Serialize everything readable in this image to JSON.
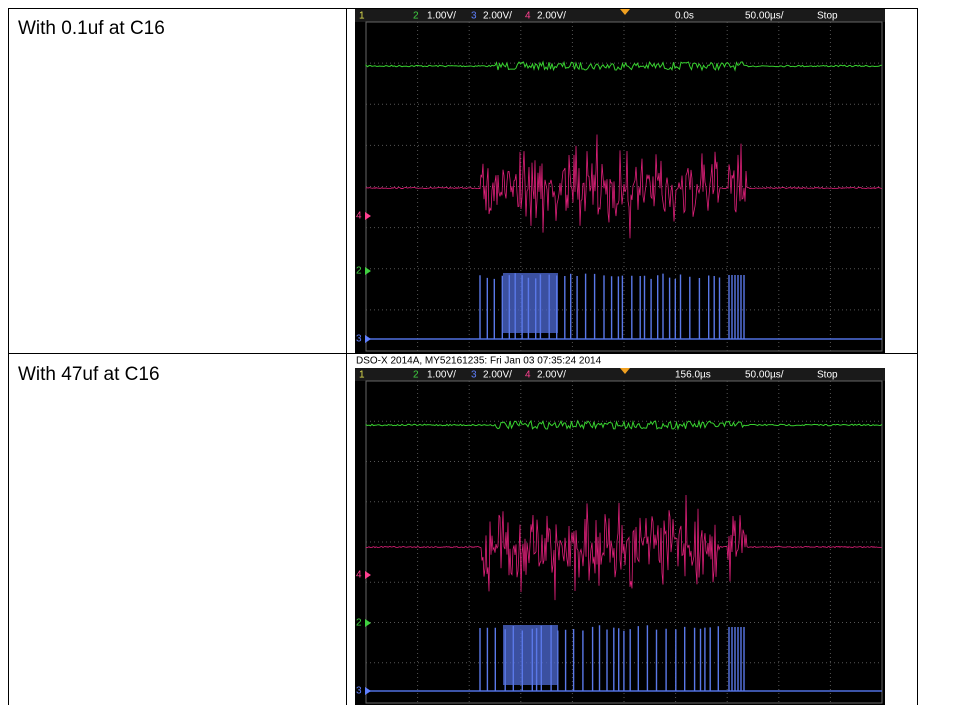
{
  "table": {
    "rows": [
      {
        "label": "With 0.1uf at C16",
        "scope": {
          "header": [
            "1",
            "2",
            "1.00V/",
            "3",
            "2.00V/",
            "4",
            "2.00V/",
            "0.0s",
            "50.00µs/",
            "Stop"
          ],
          "markers": [
            "4",
            "2",
            "3"
          ]
        }
      },
      {
        "label": "With 47uf at C16",
        "scope": {
          "caption": "DSO-X 2014A, MY52161235: Fri Jan 03 07:35:24 2014",
          "header": [
            "1",
            "2",
            "1.00V/",
            "3",
            "2.00V/",
            "4",
            "2.00V/",
            "156.0µs",
            "50.00µs/",
            "Stop"
          ],
          "markers": [
            "4",
            "2",
            "3"
          ]
        }
      }
    ]
  }
}
